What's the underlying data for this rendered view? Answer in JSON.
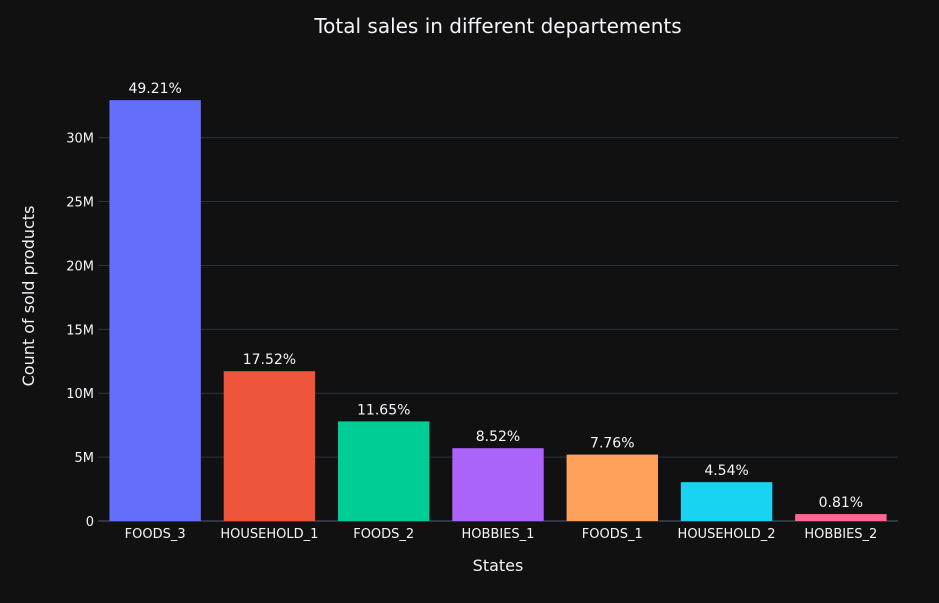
{
  "chart_data": {
    "type": "bar",
    "title": "Total sales in different departements",
    "xlabel": "States",
    "ylabel": "Count of sold products",
    "categories": [
      "FOODS_3",
      "HOUSEHOLD_1",
      "FOODS_2",
      "HOBBIES_1",
      "FOODS_1",
      "HOUSEHOLD_2",
      "HOBBIES_2"
    ],
    "values": [
      32937002,
      11722154,
      7795766,
      5699302,
      5196239,
      3041207,
      541802
    ],
    "labels": [
      "49.21%",
      "17.52%",
      "11.65%",
      "8.52%",
      "7.76%",
      "4.54%",
      "0.81%"
    ],
    "colors": [
      "#636efa",
      "#EF553B",
      "#00cc96",
      "#ab63fa",
      "#FFA15A",
      "#19d3f3",
      "#FF6692"
    ],
    "ylim": [
      0,
      34670000
    ],
    "yticks": [
      0,
      5000000,
      10000000,
      15000000,
      20000000,
      25000000,
      30000000
    ],
    "ytick_labels": [
      "0",
      "5M",
      "10M",
      "15M",
      "20M",
      "25M",
      "30M"
    ],
    "grid": true,
    "legend": "none"
  },
  "theme": {
    "background": "#111111",
    "gridline": "#283442",
    "text": "#f2f5fa"
  }
}
